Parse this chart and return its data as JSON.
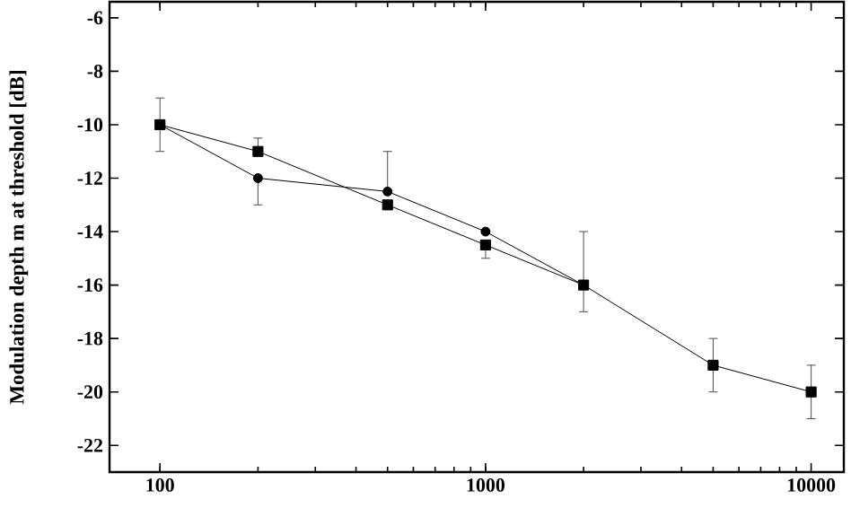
{
  "chart_data": {
    "type": "line",
    "ylabel": "Modulation depth m at threshold [dB]",
    "log": "x",
    "x": [
      100,
      200,
      500,
      1000,
      2000,
      5000,
      10000
    ],
    "series": [
      {
        "color": "#000000",
        "marker": "circle",
        "values": [
          -10,
          -12,
          -12.5,
          -14,
          -16,
          null,
          null
        ],
        "errors": [
          null,
          [
            -13,
            -12
          ],
          [
            -12.5,
            -11
          ],
          null,
          null,
          null,
          null
        ]
      },
      {
        "color": "#000000",
        "marker": "square",
        "values": [
          -10,
          -11,
          -13,
          -14.5,
          -16,
          -19,
          -20
        ],
        "errors": [
          1,
          [
            -11,
            -10.5
          ],
          null,
          [
            -15,
            -14.5
          ],
          [
            -17,
            -14
          ],
          1,
          1
        ]
      }
    ],
    "xlim": [
      70,
      12600
    ],
    "xticks": [
      100,
      1000,
      10000
    ],
    "ylim": [
      -23,
      -5.4
    ],
    "yticks": [
      -22,
      -20,
      -18,
      -16,
      -14,
      -12,
      -10,
      -8,
      -6
    ],
    "grid": false,
    "line_style": "solid"
  }
}
